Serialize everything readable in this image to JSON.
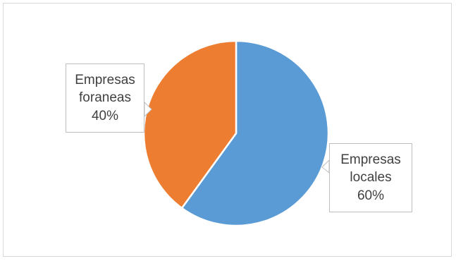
{
  "chart_data": {
    "type": "pie",
    "title": "",
    "slices": [
      {
        "name": "Empresas locales",
        "name_lines": [
          "Empresas",
          "locales"
        ],
        "value": 60,
        "label": "60%",
        "color": "#5b9bd5"
      },
      {
        "name": "Empresas foraneas",
        "name_lines": [
          "Empresas",
          "foraneas"
        ],
        "value": 40,
        "label": "40%",
        "color": "#ed7d31"
      }
    ],
    "start_angle_deg": 0,
    "direction": "clockwise",
    "legend": "none",
    "data_labels": "callout"
  }
}
